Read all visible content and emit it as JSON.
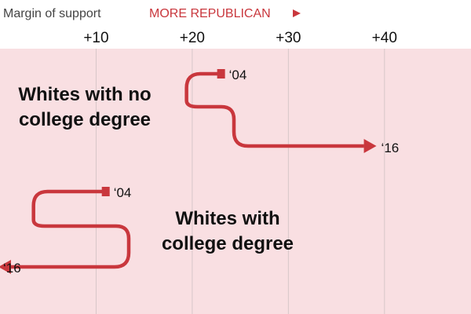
{
  "header": {
    "axis_caption": "Margin of support",
    "direction_label": "MORE REPUBLICAN"
  },
  "colors": {
    "panel_background": "#f9dfe2",
    "series": "#c9373d",
    "gridline": "#d7c7c9",
    "text": "#111111",
    "caption_text": "#444444"
  },
  "chart_data": {
    "type": "line",
    "title": "",
    "xlabel": "Margin of support",
    "ylabel": "",
    "xlim": [
      0,
      49
    ],
    "x_ticks": [
      10,
      20,
      30,
      40
    ],
    "x_tick_labels": [
      "+10",
      "+20",
      "+30",
      "+40"
    ],
    "grid": true,
    "legend": "none",
    "series": [
      {
        "name": "Whites with no college degree",
        "start_label": "‘04",
        "end_label": "‘16",
        "start_margin": 23,
        "end_margin": 39
      },
      {
        "name": "Whites with college degree",
        "start_label": "‘04",
        "end_label": "‘16",
        "start_margin": 11,
        "end_margin": 0
      }
    ],
    "annotations": [
      [
        "Whites with no",
        "college degree"
      ],
      [
        "Whites with",
        "college degree"
      ]
    ]
  }
}
